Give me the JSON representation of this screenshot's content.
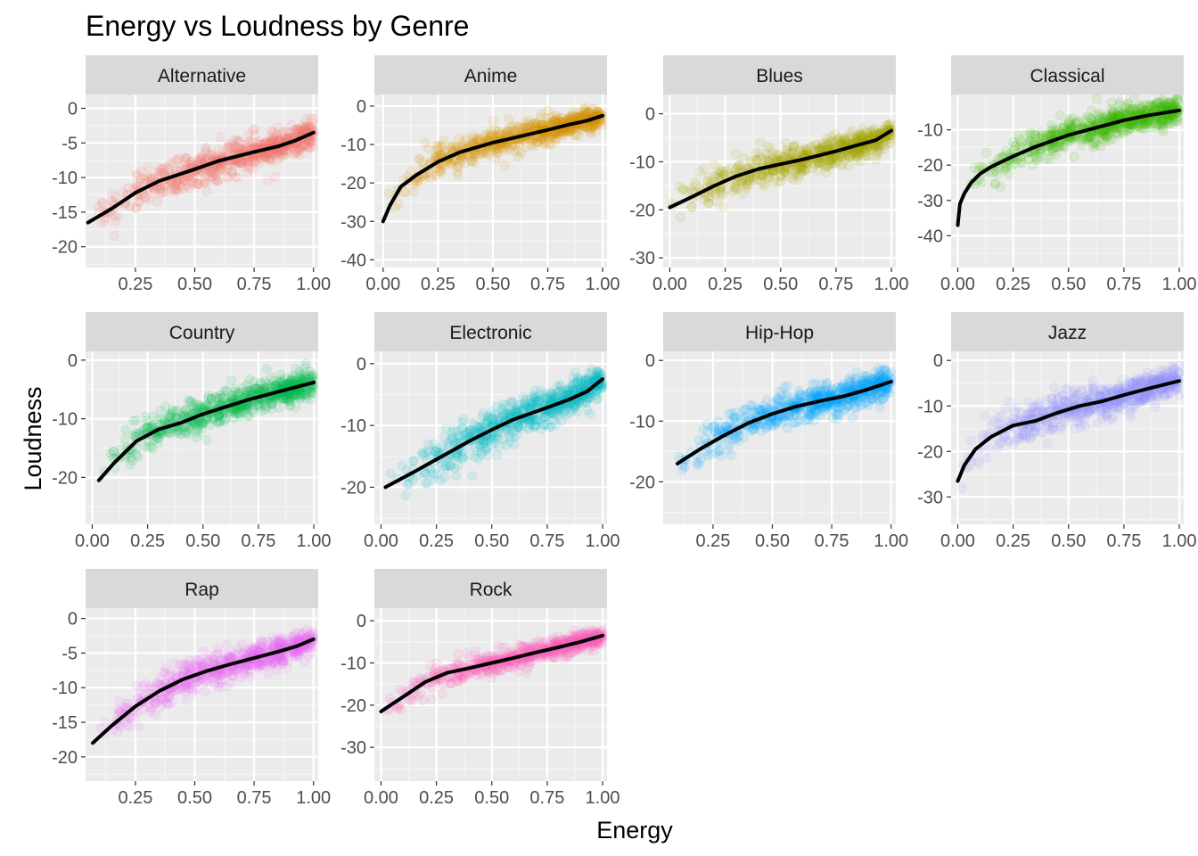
{
  "chart_data": {
    "type": "scatter",
    "title": "Energy vs Loudness by Genre",
    "xlabel": "Energy",
    "ylabel": "Loudness",
    "facets": [
      {
        "name": "Alternative",
        "color": "#F8766D",
        "xlim": [
          0.04,
          1.02
        ],
        "ylim": [
          -23,
          2
        ],
        "xticks": [
          0.25,
          0.5,
          0.75,
          1.0
        ],
        "xtick_labels": [
          "0.25",
          "0.50",
          "0.75",
          "1.00"
        ],
        "yticks": [
          0,
          -5,
          -10,
          -15,
          -20
        ],
        "ytick_labels": [
          "0",
          "-5",
          "-10",
          "-15",
          "-20"
        ],
        "smooth": [
          [
            0.05,
            -16.5
          ],
          [
            0.15,
            -14.5
          ],
          [
            0.25,
            -12.2
          ],
          [
            0.35,
            -10.5
          ],
          [
            0.5,
            -8.8
          ],
          [
            0.6,
            -7.6
          ],
          [
            0.75,
            -6.3
          ],
          [
            0.85,
            -5.5
          ],
          [
            0.92,
            -4.7
          ],
          [
            1.0,
            -3.5
          ]
        ],
        "spread": 2.5
      },
      {
        "name": "Anime",
        "color": "#D89000",
        "xlim": [
          -0.04,
          1.02
        ],
        "ylim": [
          -42,
          3
        ],
        "xticks": [
          0,
          0.25,
          0.5,
          0.75,
          1.0
        ],
        "xtick_labels": [
          "0.00",
          "0.25",
          "0.50",
          "0.75",
          "1.00"
        ],
        "yticks": [
          0,
          -10,
          -20,
          -30,
          -40
        ],
        "ytick_labels": [
          "0",
          "-10",
          "-20",
          "-30",
          "-40"
        ],
        "smooth": [
          [
            0.0,
            -30
          ],
          [
            0.03,
            -26
          ],
          [
            0.08,
            -21
          ],
          [
            0.15,
            -18
          ],
          [
            0.25,
            -14.5
          ],
          [
            0.35,
            -12
          ],
          [
            0.5,
            -9.5
          ],
          [
            0.6,
            -8.2
          ],
          [
            0.75,
            -6.2
          ],
          [
            0.85,
            -4.8
          ],
          [
            0.93,
            -3.8
          ],
          [
            1.0,
            -2.5
          ]
        ],
        "spread": 3.5
      },
      {
        "name": "Blues",
        "color": "#A3A500",
        "xlim": [
          -0.03,
          1.02
        ],
        "ylim": [
          -32,
          4
        ],
        "xticks": [
          0,
          0.25,
          0.5,
          0.75,
          1.0
        ],
        "xtick_labels": [
          "0.00",
          "0.25",
          "0.50",
          "0.75",
          "1.00"
        ],
        "yticks": [
          0,
          -10,
          -20,
          -30
        ],
        "ytick_labels": [
          "0",
          "-10",
          "-20",
          "-30"
        ],
        "smooth": [
          [
            0.0,
            -19.5
          ],
          [
            0.1,
            -17.3
          ],
          [
            0.2,
            -15
          ],
          [
            0.3,
            -13
          ],
          [
            0.4,
            -11.5
          ],
          [
            0.5,
            -10.5
          ],
          [
            0.6,
            -9.5
          ],
          [
            0.75,
            -7.8
          ],
          [
            0.85,
            -6.5
          ],
          [
            0.93,
            -5.5
          ],
          [
            1.0,
            -3.5
          ]
        ],
        "spread": 3.2
      },
      {
        "name": "Classical",
        "color": "#39B600",
        "xlim": [
          -0.03,
          1.02
        ],
        "ylim": [
          -49,
          0
        ],
        "xticks": [
          0,
          0.25,
          0.5,
          0.75,
          1.0
        ],
        "xtick_labels": [
          "0.00",
          "0.25",
          "0.50",
          "0.75",
          "1.00"
        ],
        "yticks": [
          -10,
          -20,
          -30,
          -40
        ],
        "ytick_labels": [
          "-10",
          "-20",
          "-30",
          "-40"
        ],
        "smooth": [
          [
            0.0,
            -37
          ],
          [
            0.01,
            -31
          ],
          [
            0.03,
            -28
          ],
          [
            0.06,
            -25
          ],
          [
            0.1,
            -22.5
          ],
          [
            0.15,
            -20.5
          ],
          [
            0.25,
            -17.5
          ],
          [
            0.35,
            -14.8
          ],
          [
            0.5,
            -11.5
          ],
          [
            0.6,
            -9.8
          ],
          [
            0.75,
            -7.3
          ],
          [
            0.85,
            -6.0
          ],
          [
            1.0,
            -4.5
          ]
        ],
        "spread": 4.5
      },
      {
        "name": "Country",
        "color": "#00BB4E",
        "xlim": [
          -0.03,
          1.02
        ],
        "ylim": [
          -28,
          1.5
        ],
        "xticks": [
          0,
          0.25,
          0.5,
          0.75,
          1.0
        ],
        "xtick_labels": [
          "0.00",
          "0.25",
          "0.50",
          "0.75",
          "1.00"
        ],
        "yticks": [
          0,
          -10,
          -20
        ],
        "ytick_labels": [
          "0",
          "-10",
          "-20"
        ],
        "smooth": [
          [
            0.03,
            -20.5
          ],
          [
            0.1,
            -17.5
          ],
          [
            0.2,
            -13.8
          ],
          [
            0.3,
            -11.8
          ],
          [
            0.4,
            -10.7
          ],
          [
            0.5,
            -9.2
          ],
          [
            0.6,
            -8.0
          ],
          [
            0.7,
            -6.8
          ],
          [
            0.8,
            -5.8
          ],
          [
            0.9,
            -4.8
          ],
          [
            1.0,
            -3.8
          ]
        ],
        "spread": 2.8
      },
      {
        "name": "Electronic",
        "color": "#00BFC4",
        "xlim": [
          -0.03,
          1.02
        ],
        "ylim": [
          -26,
          2
        ],
        "xticks": [
          0,
          0.25,
          0.5,
          0.75,
          1.0
        ],
        "xtick_labels": [
          "0.00",
          "0.25",
          "0.50",
          "0.75",
          "1.00"
        ],
        "yticks": [
          0,
          -10,
          -20
        ],
        "ytick_labels": [
          "0",
          "-10",
          "-20"
        ],
        "smooth": [
          [
            0.02,
            -20
          ],
          [
            0.15,
            -17.5
          ],
          [
            0.25,
            -15.5
          ],
          [
            0.4,
            -12.5
          ],
          [
            0.5,
            -10.7
          ],
          [
            0.6,
            -9.0
          ],
          [
            0.75,
            -7.1
          ],
          [
            0.85,
            -5.8
          ],
          [
            0.93,
            -4.5
          ],
          [
            1.0,
            -2.5
          ]
        ],
        "spread": 3.2
      },
      {
        "name": "Hip-Hop",
        "color": "#00A5FF",
        "xlim": [
          0.04,
          1.02
        ],
        "ylim": [
          -27,
          1.5
        ],
        "xticks": [
          0.25,
          0.5,
          0.75,
          1.0
        ],
        "xtick_labels": [
          "0.25",
          "0.50",
          "0.75",
          "1.00"
        ],
        "yticks": [
          0,
          -10,
          -20
        ],
        "ytick_labels": [
          "0",
          "-10",
          "-20"
        ],
        "smooth": [
          [
            0.1,
            -17
          ],
          [
            0.2,
            -14.5
          ],
          [
            0.3,
            -12.3
          ],
          [
            0.4,
            -10.3
          ],
          [
            0.5,
            -8.8
          ],
          [
            0.6,
            -7.6
          ],
          [
            0.7,
            -6.7
          ],
          [
            0.8,
            -5.9
          ],
          [
            0.9,
            -4.8
          ],
          [
            1.0,
            -3.5
          ]
        ],
        "spread": 2.8
      },
      {
        "name": "Jazz",
        "color": "#9590FF",
        "xlim": [
          -0.03,
          1.02
        ],
        "ylim": [
          -36,
          2
        ],
        "xticks": [
          0,
          0.25,
          0.5,
          0.75,
          1.0
        ],
        "xtick_labels": [
          "0.00",
          "0.25",
          "0.50",
          "0.75",
          "1.00"
        ],
        "yticks": [
          0,
          -10,
          -20,
          -30
        ],
        "ytick_labels": [
          "0",
          "-10",
          "-20",
          "-30"
        ],
        "smooth": [
          [
            0.0,
            -26.5
          ],
          [
            0.03,
            -23
          ],
          [
            0.08,
            -19.5
          ],
          [
            0.15,
            -16.8
          ],
          [
            0.25,
            -14.3
          ],
          [
            0.35,
            -13.3
          ],
          [
            0.45,
            -11.5
          ],
          [
            0.55,
            -10.0
          ],
          [
            0.65,
            -9.0
          ],
          [
            0.75,
            -7.6
          ],
          [
            0.85,
            -6.3
          ],
          [
            1.0,
            -4.5
          ]
        ],
        "spread": 3.8
      },
      {
        "name": "Rap",
        "color": "#E76BF3",
        "xlim": [
          0.04,
          1.02
        ],
        "ylim": [
          -23.5,
          1.5
        ],
        "xticks": [
          0.25,
          0.5,
          0.75,
          1.0
        ],
        "xtick_labels": [
          "0.25",
          "0.50",
          "0.75",
          "1.00"
        ],
        "yticks": [
          0,
          -5,
          -10,
          -15,
          -20
        ],
        "ytick_labels": [
          "0",
          "-5",
          "-10",
          "-15",
          "-20"
        ],
        "smooth": [
          [
            0.07,
            -18
          ],
          [
            0.15,
            -15.5
          ],
          [
            0.25,
            -12.7
          ],
          [
            0.35,
            -10.5
          ],
          [
            0.45,
            -8.8
          ],
          [
            0.55,
            -7.6
          ],
          [
            0.65,
            -6.6
          ],
          [
            0.75,
            -5.7
          ],
          [
            0.85,
            -4.8
          ],
          [
            0.93,
            -4.0
          ],
          [
            1.0,
            -3.0
          ]
        ],
        "spread": 2.2
      },
      {
        "name": "Rock",
        "color": "#FF62BC",
        "xlim": [
          -0.03,
          1.02
        ],
        "ylim": [
          -38,
          3
        ],
        "xticks": [
          0,
          0.25,
          0.5,
          0.75,
          1.0
        ],
        "xtick_labels": [
          "0.00",
          "0.25",
          "0.50",
          "0.75",
          "1.00"
        ],
        "yticks": [
          0,
          -10,
          -20,
          -30
        ],
        "ytick_labels": [
          "0",
          "-10",
          "-20",
          "-30"
        ],
        "smooth": [
          [
            0.0,
            -21.5
          ],
          [
            0.1,
            -18
          ],
          [
            0.2,
            -14.5
          ],
          [
            0.3,
            -12.3
          ],
          [
            0.4,
            -11.2
          ],
          [
            0.5,
            -10.0
          ],
          [
            0.6,
            -8.8
          ],
          [
            0.7,
            -7.5
          ],
          [
            0.8,
            -6.3
          ],
          [
            0.9,
            -5.0
          ],
          [
            1.0,
            -3.5
          ]
        ],
        "spread": 2.6
      }
    ],
    "grid": true,
    "legend": "none"
  }
}
